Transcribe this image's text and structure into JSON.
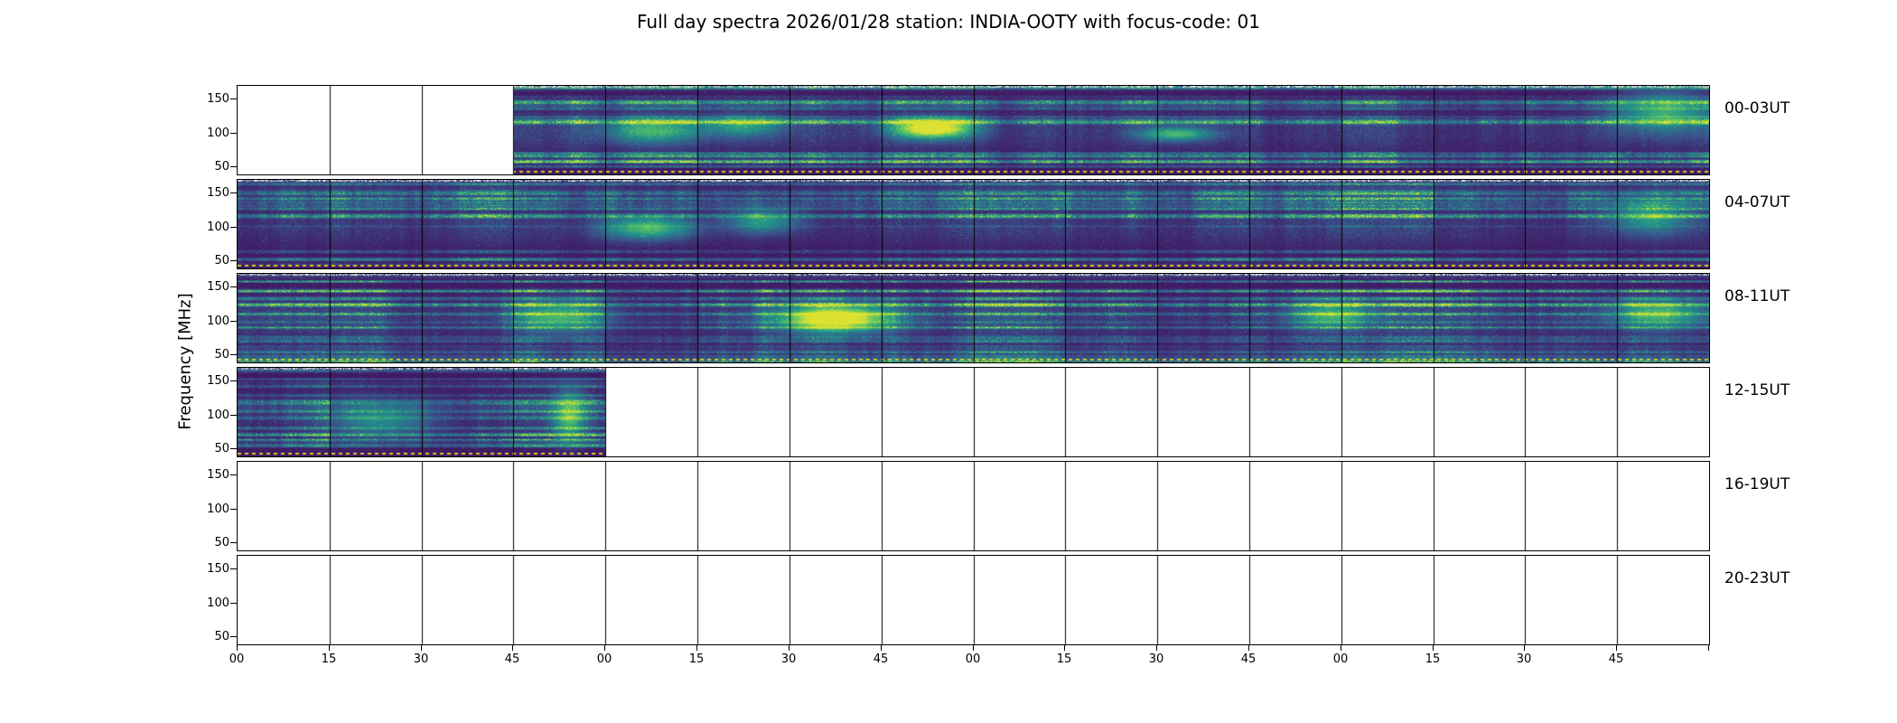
{
  "title": "Full day spectra 2026/01/28 station: INDIA-OOTY with focus-code: 01",
  "ylabel": "Frequency [MHz]",
  "chart_data": {
    "type": "heatmap",
    "description": "Full-day dynamic radio spectrogram for station INDIA-OOTY, 2026/01/28. Six stacked 4-hour rows, each row made of sixteen 15-minute spectrogram panels. Color = intensity (viridis). White panels = no data recorded.",
    "freq_ticks": [
      150,
      100,
      50
    ],
    "freq_axis_range_mhz": [
      40,
      170
    ],
    "x_tick_labels": [
      "00",
      "15",
      "30",
      "45",
      "00",
      "15",
      "30",
      "45",
      "00",
      "15",
      "30",
      "45",
      "00",
      "15",
      "30",
      "45"
    ],
    "x_axis_units": "minutes past each hour of the 4-hour block",
    "colormap": "viridis",
    "colormap_stops_rgb": [
      [
        68,
        1,
        84
      ],
      [
        59,
        82,
        139
      ],
      [
        33,
        145,
        140
      ],
      [
        94,
        201,
        98
      ],
      [
        253,
        231,
        37
      ]
    ],
    "marker_line_color": "#e1d628",
    "panel_border_color": "#000000",
    "background_color": "#ffffff",
    "rows": [
      {
        "label": "00-03UT",
        "panels": [
          0,
          0,
          0,
          1,
          1,
          1,
          1,
          1,
          1,
          1,
          1,
          1,
          1,
          1,
          1,
          1
        ],
        "activity": 1.0,
        "events": [
          {
            "center_panel": 7.55,
            "freq_mhz": 108,
            "freq_span_mhz": 22,
            "duration_min": 10,
            "strength": 0.95
          },
          {
            "center_panel": 10.2,
            "freq_mhz": 100,
            "freq_span_mhz": 16,
            "duration_min": 9,
            "strength": 0.5
          },
          {
            "center_panel": 4.5,
            "freq_mhz": 105,
            "freq_span_mhz": 28,
            "duration_min": 12,
            "strength": 0.45
          },
          {
            "center_panel": 5.5,
            "freq_mhz": 112,
            "freq_span_mhz": 24,
            "duration_min": 10,
            "strength": 0.38
          },
          {
            "center_panel": 15.5,
            "freq_mhz": 132,
            "freq_span_mhz": 45,
            "duration_min": 12,
            "strength": 0.5
          }
        ]
      },
      {
        "label": "04-07UT",
        "panels": [
          1,
          1,
          1,
          1,
          1,
          1,
          1,
          1,
          1,
          1,
          1,
          1,
          1,
          1,
          1,
          1
        ],
        "activity": 0.95,
        "events": [
          {
            "center_panel": 4.45,
            "freq_mhz": 100,
            "freq_span_mhz": 26,
            "duration_min": 11,
            "strength": 0.55
          },
          {
            "center_panel": 5.7,
            "freq_mhz": 110,
            "freq_span_mhz": 28,
            "duration_min": 9,
            "strength": 0.4
          },
          {
            "center_panel": 15.35,
            "freq_mhz": 118,
            "freq_span_mhz": 40,
            "duration_min": 10,
            "strength": 0.42
          }
        ]
      },
      {
        "label": "08-11UT",
        "panels": [
          1,
          1,
          1,
          1,
          1,
          1,
          1,
          1,
          1,
          1,
          1,
          1,
          1,
          1,
          1,
          1
        ],
        "activity": 1.15,
        "events": [
          {
            "center_panel": 6.5,
            "freq_mhz": 105,
            "freq_span_mhz": 30,
            "duration_min": 14,
            "strength": 0.95
          },
          {
            "center_panel": 3.5,
            "freq_mhz": 108,
            "freq_span_mhz": 35,
            "duration_min": 11,
            "strength": 0.5
          },
          {
            "center_panel": 11.9,
            "freq_mhz": 110,
            "freq_span_mhz": 30,
            "duration_min": 10,
            "strength": 0.45
          },
          {
            "center_panel": 15.45,
            "freq_mhz": 112,
            "freq_span_mhz": 32,
            "duration_min": 12,
            "strength": 0.5
          }
        ]
      },
      {
        "label": "12-15UT",
        "panels": [
          1,
          1,
          1,
          1,
          0,
          0,
          0,
          0,
          0,
          0,
          0,
          0,
          0,
          0,
          0,
          0
        ],
        "activity": 0.9,
        "events": [
          {
            "center_panel": 3.6,
            "freq_mhz": 100,
            "freq_span_mhz": 55,
            "duration_min": 4,
            "strength": 0.55
          },
          {
            "center_panel": 1.55,
            "freq_mhz": 95,
            "freq_span_mhz": 40,
            "duration_min": 12,
            "strength": 0.35
          }
        ]
      },
      {
        "label": "16-19UT",
        "panels": [
          0,
          0,
          0,
          0,
          0,
          0,
          0,
          0,
          0,
          0,
          0,
          0,
          0,
          0,
          0,
          0
        ],
        "activity": 0,
        "events": []
      },
      {
        "label": "20-23UT",
        "panels": [
          0,
          0,
          0,
          0,
          0,
          0,
          0,
          0,
          0,
          0,
          0,
          0,
          0,
          0,
          0,
          0
        ],
        "activity": 0,
        "events": []
      }
    ]
  }
}
